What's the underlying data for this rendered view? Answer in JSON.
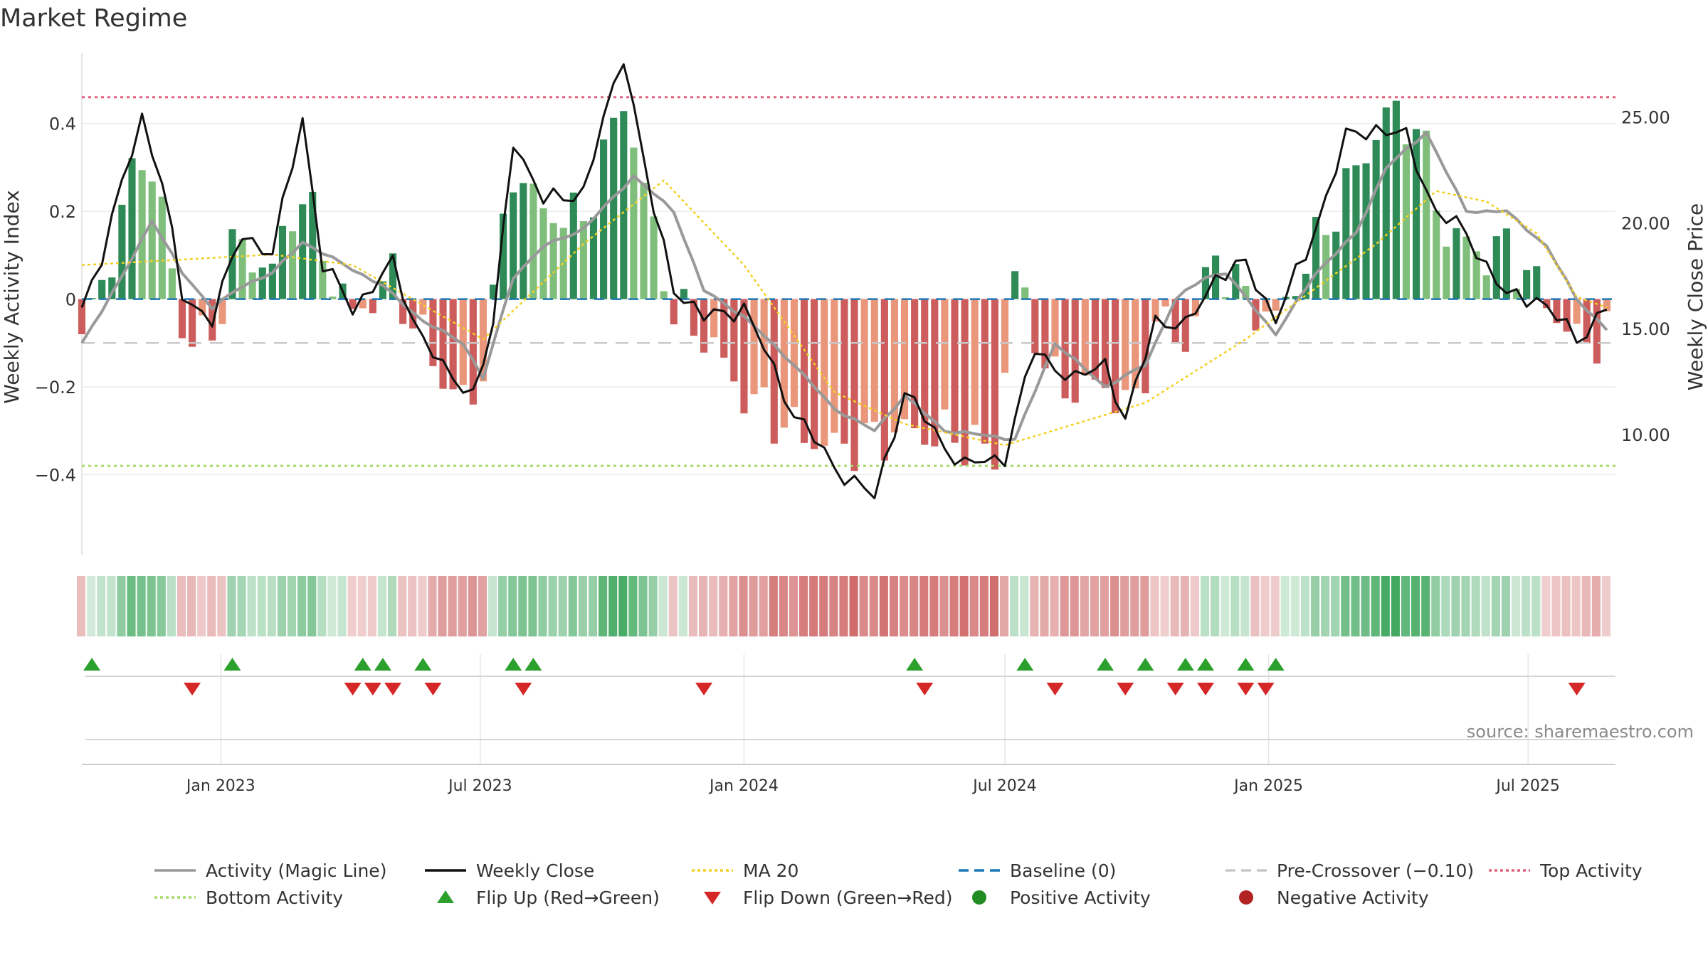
{
  "title": "Market Regime",
  "source": "source: sharemaestro.com",
  "colors": {
    "strong_green": "#2e8b57",
    "light_green": "#7fbf7b",
    "strong_red": "#cd5c5c",
    "light_red": "#e9967a",
    "magic_line": "#999999",
    "close": "#111111",
    "ma20": "#f2d024",
    "baseline": "#1f77b4",
    "pre_crossover": "#c8c8c8",
    "top": "#e0607e",
    "bottom": "#a6d96a",
    "flip_up": "#2ca02c",
    "flip_down": "#d62728",
    "positive": "#228b22",
    "negative": "#b22222"
  },
  "legend": [
    {
      "key": "magic",
      "label": "Activity (Magic Line)",
      "symbol": "line",
      "color": "#999999",
      "dash": ""
    },
    {
      "key": "close",
      "label": "Weekly Close",
      "symbol": "line",
      "color": "#111111",
      "dash": ""
    },
    {
      "key": "ma20",
      "label": "MA 20",
      "symbol": "line",
      "color": "#f2d024",
      "dash": "4,4"
    },
    {
      "key": "baseline",
      "label": "Baseline (0)",
      "symbol": "line",
      "color": "#1f77b4",
      "dash": "14,8"
    },
    {
      "key": "pre",
      "label": "Pre-Crossover (−0.10)",
      "symbol": "line",
      "color": "#c8c8c8",
      "dash": "14,8"
    },
    {
      "key": "top",
      "label": "Top Activity",
      "symbol": "line",
      "color": "#e0607e",
      "dash": "4,4"
    },
    {
      "key": "bottom",
      "label": "Bottom Activity",
      "symbol": "line",
      "color": "#a6d96a",
      "dash": "4,4"
    },
    {
      "key": "flipup",
      "label": "Flip Up (Red→Green)",
      "symbol": "tri-up",
      "color": "#2ca02c",
      "dash": ""
    },
    {
      "key": "flipdown",
      "label": "Flip Down (Green→Red)",
      "symbol": "tri-down",
      "color": "#d62728",
      "dash": ""
    },
    {
      "key": "pos",
      "label": "Positive Activity",
      "symbol": "dot",
      "color": "#228b22",
      "dash": ""
    },
    {
      "key": "neg",
      "label": "Negative Activity",
      "symbol": "dot",
      "color": "#b22222",
      "dash": ""
    }
  ],
  "chart_data": {
    "type": "bar",
    "title": "Market Regime",
    "ylabel": "Weekly Activity Index",
    "y2label": "Weekly Close Price",
    "ylim": [
      -0.55,
      0.56
    ],
    "y2lim": [
      5.0,
      28.0
    ],
    "yticks": [
      -0.4,
      -0.2,
      0,
      0.2,
      0.4
    ],
    "ytick_labels": [
      "−0.4",
      "−0.2",
      "0",
      "0.2",
      "0.4"
    ],
    "y2ticks": [
      10,
      15,
      20,
      25
    ],
    "y2tick_labels": [
      "10.00",
      "15.00",
      "20.00",
      "25.00"
    ],
    "x_start": "2022-09-26",
    "x_end": "2025-08-31",
    "xtick_dates": [
      "2023-01-01",
      "2023-07-01",
      "2024-01-01",
      "2024-07-01",
      "2025-01-01",
      "2025-07-01"
    ],
    "xtick_labels": [
      "Jan 2023",
      "Jul 2023",
      "Jan 2024",
      "Jul 2024",
      "Jan 2025",
      "Jul 2025"
    ],
    "reference_lines": {
      "baseline": 0,
      "pre_crossover": -0.1,
      "top_activity": 0.46,
      "bottom_activity": -0.38
    },
    "anchors": {
      "activity": [
        [
          "2022-09-26",
          -0.08
        ],
        [
          "2022-10-10",
          0.03
        ],
        [
          "2022-11-07",
          0.35
        ],
        [
          "2022-11-21",
          0.2
        ],
        [
          "2022-12-05",
          -0.07
        ],
        [
          "2022-12-26",
          -0.1
        ],
        [
          "2023-01-09",
          0.12
        ],
        [
          "2023-02-06",
          0.07
        ],
        [
          "2023-02-27",
          0.25
        ],
        [
          "2023-03-13",
          0.1
        ],
        [
          "2023-04-03",
          -0.04
        ],
        [
          "2023-05-01",
          0.05
        ],
        [
          "2023-05-15",
          -0.05
        ],
        [
          "2023-06-05",
          -0.18
        ],
        [
          "2023-06-26",
          -0.25
        ],
        [
          "2023-07-10",
          0.0
        ],
        [
          "2023-07-24",
          0.3
        ],
        [
          "2023-08-14",
          0.2
        ],
        [
          "2023-09-11",
          0.18
        ],
        [
          "2023-10-09",
          0.46
        ],
        [
          "2023-10-30",
          0.15
        ],
        [
          "2023-11-13",
          -0.03
        ],
        [
          "2023-12-04",
          -0.08
        ],
        [
          "2024-01-01",
          -0.22
        ],
        [
          "2024-02-05",
          -0.3
        ],
        [
          "2024-03-04",
          -0.34
        ],
        [
          "2024-04-22",
          -0.3
        ],
        [
          "2024-06-03",
          -0.32
        ],
        [
          "2024-06-24",
          -0.36
        ],
        [
          "2024-07-08",
          0.05
        ],
        [
          "2024-08-05",
          -0.2
        ],
        [
          "2024-09-09",
          -0.2
        ],
        [
          "2024-09-30",
          -0.25
        ],
        [
          "2024-10-14",
          -0.05
        ],
        [
          "2024-11-04",
          -0.1
        ],
        [
          "2024-11-25",
          0.1
        ],
        [
          "2024-12-16",
          0.0
        ],
        [
          "2025-01-06",
          -0.05
        ],
        [
          "2025-01-27",
          0.08
        ],
        [
          "2025-02-24",
          0.25
        ],
        [
          "2025-03-24",
          0.42
        ],
        [
          "2025-04-14",
          0.4
        ],
        [
          "2025-05-05",
          0.15
        ],
        [
          "2025-06-02",
          0.1
        ],
        [
          "2025-06-16",
          0.12
        ],
        [
          "2025-07-07",
          0.03
        ],
        [
          "2025-08-04",
          -0.1
        ],
        [
          "2025-08-25",
          -0.08
        ]
      ],
      "close": [
        [
          "2022-09-26",
          16.0
        ],
        [
          "2022-10-10",
          18.5
        ],
        [
          "2022-11-07",
          25.0
        ],
        [
          "2022-11-21",
          22.0
        ],
        [
          "2022-12-05",
          16.5
        ],
        [
          "2022-12-26",
          15.5
        ],
        [
          "2023-01-16",
          19.5
        ],
        [
          "2023-02-06",
          18.5
        ],
        [
          "2023-02-27",
          25.0
        ],
        [
          "2023-03-13",
          18.0
        ],
        [
          "2023-04-03",
          16.0
        ],
        [
          "2023-05-01",
          18.0
        ],
        [
          "2023-05-15",
          15.5
        ],
        [
          "2023-06-05",
          13.0
        ],
        [
          "2023-06-26",
          12.0
        ],
        [
          "2023-07-10",
          15.0
        ],
        [
          "2023-07-24",
          24.0
        ],
        [
          "2023-08-14",
          21.0
        ],
        [
          "2023-09-11",
          21.5
        ],
        [
          "2023-10-09",
          28.0
        ],
        [
          "2023-10-30",
          20.5
        ],
        [
          "2023-11-13",
          17.0
        ],
        [
          "2023-12-04",
          15.5
        ],
        [
          "2024-01-01",
          16.0
        ],
        [
          "2024-02-05",
          11.0
        ],
        [
          "2024-03-04",
          8.5
        ],
        [
          "2024-04-01",
          7.0
        ],
        [
          "2024-04-22",
          12.0
        ],
        [
          "2024-05-20",
          9.5
        ],
        [
          "2024-06-03",
          8.5
        ],
        [
          "2024-07-01",
          9.0
        ],
        [
          "2024-07-22",
          14.0
        ],
        [
          "2024-08-19",
          12.5
        ],
        [
          "2024-09-09",
          13.5
        ],
        [
          "2024-09-23",
          10.5
        ],
        [
          "2024-10-14",
          15.5
        ],
        [
          "2024-11-04",
          15.0
        ],
        [
          "2024-11-25",
          17.5
        ],
        [
          "2024-12-16",
          18.0
        ],
        [
          "2025-01-06",
          15.5
        ],
        [
          "2025-01-27",
          18.5
        ],
        [
          "2025-02-24",
          24.0
        ],
        [
          "2025-03-17",
          24.5
        ],
        [
          "2025-04-07",
          24.0
        ],
        [
          "2025-04-28",
          20.5
        ],
        [
          "2025-05-19",
          19.5
        ],
        [
          "2025-06-16",
          16.5
        ],
        [
          "2025-07-07",
          16.5
        ],
        [
          "2025-08-04",
          14.5
        ],
        [
          "2025-08-25",
          16.0
        ]
      ],
      "ma20": [
        [
          "2022-09-26",
          18.0
        ],
        [
          "2023-02-06",
          18.5
        ],
        [
          "2023-04-03",
          18.0
        ],
        [
          "2023-07-03",
          14.5
        ],
        [
          "2023-09-11",
          19.0
        ],
        [
          "2023-11-06",
          22.0
        ],
        [
          "2024-01-01",
          18.0
        ],
        [
          "2024-03-04",
          12.0
        ],
        [
          "2024-04-22",
          10.5
        ],
        [
          "2024-07-01",
          9.5
        ],
        [
          "2024-10-07",
          11.5
        ],
        [
          "2024-12-16",
          14.5
        ],
        [
          "2025-03-17",
          19.0
        ],
        [
          "2025-04-28",
          21.5
        ],
        [
          "2025-06-02",
          21.0
        ],
        [
          "2025-07-07",
          19.5
        ],
        [
          "2025-08-04",
          16.5
        ],
        [
          "2025-08-25",
          16.0
        ]
      ],
      "magic": [
        [
          "2022-09-26",
          -0.1
        ],
        [
          "2022-10-24",
          0.05
        ],
        [
          "2022-11-14",
          0.18
        ],
        [
          "2022-12-05",
          0.06
        ],
        [
          "2022-12-26",
          -0.02
        ],
        [
          "2023-01-16",
          0.03
        ],
        [
          "2023-02-06",
          0.06
        ],
        [
          "2023-02-27",
          0.13
        ],
        [
          "2023-03-27",
          0.08
        ],
        [
          "2023-04-24",
          0.03
        ],
        [
          "2023-05-22",
          -0.05
        ],
        [
          "2023-06-19",
          -0.1
        ],
        [
          "2023-07-03",
          -0.18
        ],
        [
          "2023-07-24",
          0.05
        ],
        [
          "2023-08-14",
          0.12
        ],
        [
          "2023-09-11",
          0.16
        ],
        [
          "2023-10-16",
          0.28
        ],
        [
          "2023-11-13",
          0.2
        ],
        [
          "2023-12-04",
          0.02
        ],
        [
          "2024-01-01",
          -0.04
        ],
        [
          "2024-02-05",
          -0.15
        ],
        [
          "2024-03-04",
          -0.25
        ],
        [
          "2024-04-01",
          -0.3
        ],
        [
          "2024-04-22",
          -0.22
        ],
        [
          "2024-05-20",
          -0.3
        ],
        [
          "2024-06-17",
          -0.31
        ],
        [
          "2024-07-08",
          -0.32
        ],
        [
          "2024-08-05",
          -0.1
        ],
        [
          "2024-09-09",
          -0.2
        ],
        [
          "2024-10-07",
          -0.15
        ],
        [
          "2024-10-28",
          0.0
        ],
        [
          "2024-11-18",
          0.05
        ],
        [
          "2024-12-02",
          0.06
        ],
        [
          "2025-01-06",
          -0.08
        ],
        [
          "2025-02-03",
          0.06
        ],
        [
          "2025-03-03",
          0.15
        ],
        [
          "2025-03-24",
          0.3
        ],
        [
          "2025-04-21",
          0.38
        ],
        [
          "2025-05-19",
          0.2
        ],
        [
          "2025-06-16",
          0.2
        ],
        [
          "2025-07-14",
          0.12
        ],
        [
          "2025-08-04",
          0.0
        ],
        [
          "2025-08-25",
          -0.07
        ]
      ]
    },
    "flip_up_dates": [
      "2022-10-03",
      "2023-01-09",
      "2023-04-10",
      "2023-04-24",
      "2023-05-22",
      "2023-07-24",
      "2023-08-07",
      "2024-04-29",
      "2024-07-15",
      "2024-09-09",
      "2024-10-07",
      "2024-11-04",
      "2024-11-18",
      "2024-12-16",
      "2025-01-06"
    ],
    "flip_down_dates": [
      "2022-12-12",
      "2023-04-03",
      "2023-04-17",
      "2023-05-01",
      "2023-05-29",
      "2023-07-31",
      "2023-12-04",
      "2024-05-06",
      "2024-08-05",
      "2024-09-23",
      "2024-10-28",
      "2024-11-18",
      "2024-12-16",
      "2024-12-30",
      "2025-08-04"
    ]
  }
}
